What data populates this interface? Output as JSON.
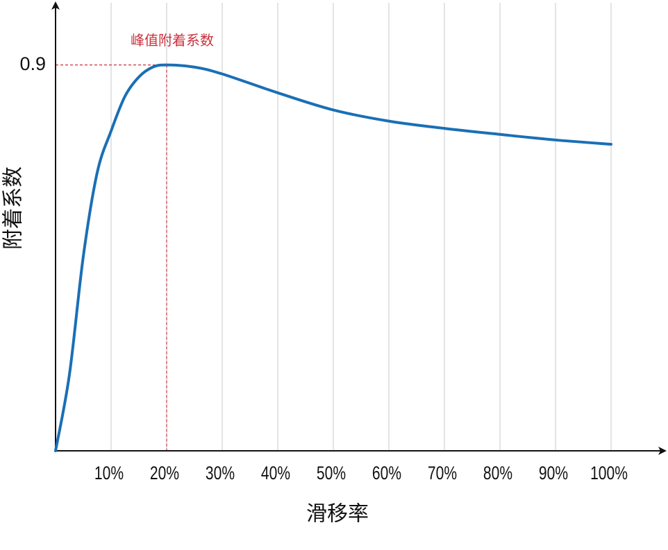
{
  "chart_data": {
    "type": "line",
    "x_label": "滑移率",
    "y_label": "附着系数",
    "x": [
      0,
      2.5,
      5,
      7.5,
      10,
      12.5,
      15,
      17.5,
      20,
      25,
      30,
      40,
      50,
      60,
      70,
      80,
      90,
      100
    ],
    "series": [
      {
        "color": "#1a6fb5",
        "values": [
          0,
          0.178,
          0.454,
          0.649,
          0.746,
          0.827,
          0.872,
          0.895,
          0.9,
          0.895,
          0.879,
          0.835,
          0.795,
          0.769,
          0.752,
          0.738,
          0.725,
          0.715
        ]
      }
    ],
    "xlim": [
      0,
      109.5
    ],
    "ylim": [
      0,
      1.045
    ],
    "xticks": [
      {
        "value": 10,
        "label": "10%"
      },
      {
        "value": 20,
        "label": "20%"
      },
      {
        "value": 30,
        "label": "30%"
      },
      {
        "value": 40,
        "label": "40%"
      },
      {
        "value": 50,
        "label": "50%"
      },
      {
        "value": 60,
        "label": "60%"
      },
      {
        "value": 70,
        "label": "70%"
      },
      {
        "value": 80,
        "label": "80%"
      },
      {
        "value": 90,
        "label": "90%"
      },
      {
        "value": 100,
        "label": "100%"
      }
    ],
    "yticks": [
      0.9
    ],
    "grid": true,
    "peak": {
      "x": 20,
      "y": 0.9,
      "label": "峰值附着系数",
      "color": "#c8323c"
    }
  }
}
